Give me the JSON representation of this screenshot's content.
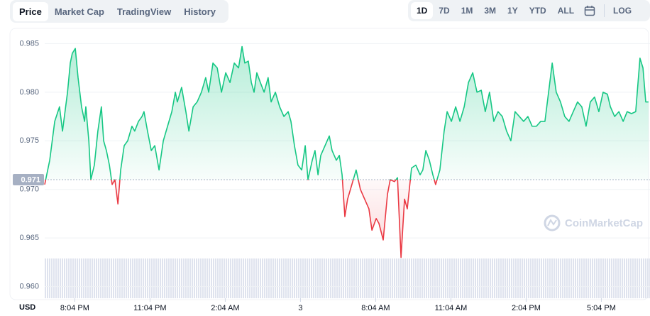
{
  "tabs": [
    "Price",
    "Market Cap",
    "TradingView",
    "History"
  ],
  "active_tab": 0,
  "ranges": [
    "1D",
    "7D",
    "1M",
    "3M",
    "1Y",
    "YTD",
    "ALL"
  ],
  "active_range": 0,
  "log_label": "LOG",
  "chart_data": {
    "type": "line",
    "currency": "USD",
    "watermark": "CoinMarketCap",
    "baseline": 0.971,
    "color_up": "#16c784",
    "color_down": "#ea3943",
    "grid": true,
    "xlim": [
      18.87,
      43.01
    ],
    "xticks": [
      {
        "value": 20.07,
        "label": "8:04 PM"
      },
      {
        "value": 23.07,
        "label": "11:04 PM"
      },
      {
        "value": 26.07,
        "label": "2:04 AM"
      },
      {
        "value": 29.07,
        "label": "3"
      },
      {
        "value": 32.07,
        "label": "8:04 AM"
      },
      {
        "value": 35.07,
        "label": "11:04 AM"
      },
      {
        "value": 38.07,
        "label": "2:04 PM"
      },
      {
        "value": 41.07,
        "label": "5:04 PM"
      }
    ],
    "ylim": [
      0.9588,
      0.9862
    ],
    "yticks": [
      {
        "value": 0.96,
        "label": "0.960"
      },
      0.965,
      {
        "value": 0.97,
        "label": "0.970"
      },
      0.975,
      {
        "value": 0.98,
        "label": "0.980"
      },
      0.985
    ],
    "x": [
      18.87,
      19.07,
      19.27,
      19.46,
      19.58,
      19.78,
      19.89,
      19.97,
      20.09,
      20.2,
      20.34,
      20.46,
      20.51,
      20.63,
      20.71,
      20.85,
      20.99,
      21.13,
      21.22,
      21.33,
      21.45,
      21.56,
      21.67,
      21.79,
      21.9,
      22.04,
      22.18,
      22.35,
      22.46,
      22.61,
      22.75,
      22.83,
      22.97,
      23.12,
      23.26,
      23.43,
      23.6,
      23.77,
      23.94,
      24.08,
      24.16,
      24.33,
      24.5,
      24.62,
      24.79,
      24.95,
      25.12,
      25.29,
      25.41,
      25.58,
      25.75,
      25.92,
      26.09,
      26.26,
      26.43,
      26.6,
      26.74,
      26.85,
      26.99,
      27.11,
      27.22,
      27.33,
      27.47,
      27.62,
      27.78,
      27.9,
      28.07,
      28.24,
      28.41,
      28.58,
      28.69,
      28.83,
      28.97,
      29.12,
      29.26,
      29.37,
      29.54,
      29.65,
      29.77,
      29.88,
      30.05,
      30.22,
      30.33,
      30.5,
      30.62,
      30.73,
      30.84,
      30.95,
      31.12,
      31.29,
      31.46,
      31.63,
      31.8,
      31.92,
      32.09,
      32.2,
      32.37,
      32.54,
      32.65,
      32.82,
      32.94,
      33.08,
      33.22,
      33.33,
      33.5,
      33.67,
      33.84,
      33.95,
      34.07,
      34.21,
      34.35,
      34.46,
      34.63,
      34.8,
      34.92,
      35.09,
      35.26,
      35.43,
      35.6,
      35.77,
      35.94,
      36.11,
      36.28,
      36.44,
      36.61,
      36.78,
      36.95,
      37.12,
      37.29,
      37.46,
      37.63,
      37.8,
      37.97,
      38.14,
      38.31,
      38.48,
      38.65,
      38.82,
      38.99,
      39.11,
      39.27,
      39.44,
      39.61,
      39.78,
      39.95,
      40.12,
      40.29,
      40.46,
      40.63,
      40.8,
      40.97,
      41.14,
      41.31,
      41.43,
      41.6,
      41.77,
      41.94,
      42.1,
      42.27,
      42.44,
      42.61,
      42.73,
      42.84,
      42.95
    ],
    "values": [
      0.9705,
      0.973,
      0.977,
      0.9785,
      0.976,
      0.98,
      0.983,
      0.984,
      0.9845,
      0.9815,
      0.9785,
      0.977,
      0.9785,
      0.975,
      0.971,
      0.9725,
      0.976,
      0.9785,
      0.975,
      0.974,
      0.9725,
      0.9705,
      0.971,
      0.9685,
      0.972,
      0.9745,
      0.975,
      0.9765,
      0.976,
      0.977,
      0.9775,
      0.978,
      0.976,
      0.974,
      0.9745,
      0.972,
      0.975,
      0.9765,
      0.978,
      0.98,
      0.979,
      0.9805,
      0.978,
      0.976,
      0.9785,
      0.979,
      0.98,
      0.9815,
      0.98,
      0.983,
      0.9825,
      0.98,
      0.982,
      0.981,
      0.983,
      0.9825,
      0.9847,
      0.983,
      0.9832,
      0.981,
      0.98,
      0.982,
      0.981,
      0.98,
      0.9815,
      0.979,
      0.98,
      0.9785,
      0.9775,
      0.978,
      0.977,
      0.9745,
      0.9725,
      0.972,
      0.9745,
      0.971,
      0.973,
      0.974,
      0.9715,
      0.9735,
      0.9745,
      0.9755,
      0.974,
      0.973,
      0.9735,
      0.9715,
      0.9672,
      0.969,
      0.9705,
      0.972,
      0.97,
      0.969,
      0.968,
      0.9658,
      0.967,
      0.9665,
      0.9648,
      0.9695,
      0.971,
      0.9708,
      0.9712,
      0.963,
      0.969,
      0.968,
      0.9722,
      0.9725,
      0.9715,
      0.972,
      0.974,
      0.973,
      0.9715,
      0.9705,
      0.972,
      0.976,
      0.978,
      0.977,
      0.9785,
      0.977,
      0.9785,
      0.981,
      0.982,
      0.98,
      0.9802,
      0.978,
      0.98,
      0.977,
      0.978,
      0.9775,
      0.976,
      0.975,
      0.978,
      0.9775,
      0.977,
      0.9775,
      0.9765,
      0.9765,
      0.977,
      0.977,
      0.9805,
      0.983,
      0.98,
      0.979,
      0.9775,
      0.977,
      0.978,
      0.979,
      0.9785,
      0.9765,
      0.979,
      0.9795,
      0.978,
      0.98,
      0.9798,
      0.9785,
      0.9775,
      0.978,
      0.977,
      0.978,
      0.9778,
      0.978,
      0.9835,
      0.9825,
      0.979,
      0.979
    ]
  }
}
